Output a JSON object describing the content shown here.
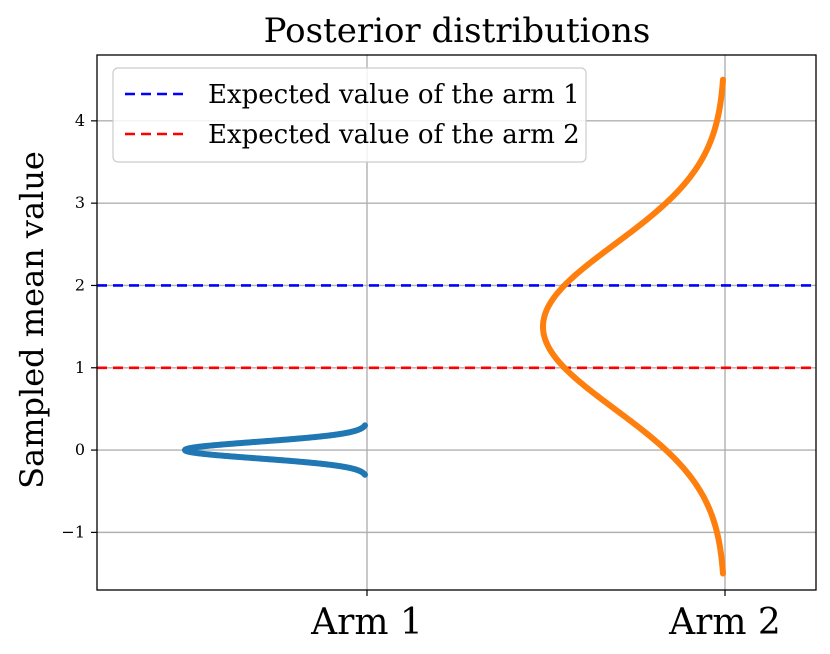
{
  "chart_data": {
    "type": "line",
    "title": "Posterior distributions",
    "xlabel": "",
    "ylabel": "Sampled mean value",
    "categories": [
      "Arm 1",
      "Arm 2"
    ],
    "ylim": [
      -1.7,
      4.8
    ],
    "yticks": [
      -1,
      0,
      1,
      2,
      3,
      4
    ],
    "ytick_labels": [
      "−1",
      "0",
      "1",
      "2",
      "3",
      "4"
    ],
    "grid": true,
    "legend_position": "top-left",
    "hlines": [
      {
        "label": "Expected value of the arm 1",
        "y": 2,
        "color": "#0000ff",
        "style": "dashed"
      },
      {
        "label": "Expected value of the arm 2",
        "y": 1,
        "color": "#ff0000",
        "style": "dashed"
      }
    ],
    "series": [
      {
        "category": "Arm 1",
        "color": "#1f77b4",
        "mean": 0.0,
        "sd": 0.1,
        "y_range": [
          -0.3,
          0.3
        ]
      },
      {
        "category": "Arm 2",
        "color": "#ff7f0e",
        "mean": 1.5,
        "sd": 1.0,
        "y_range": [
          -1.5,
          4.5
        ]
      }
    ]
  }
}
